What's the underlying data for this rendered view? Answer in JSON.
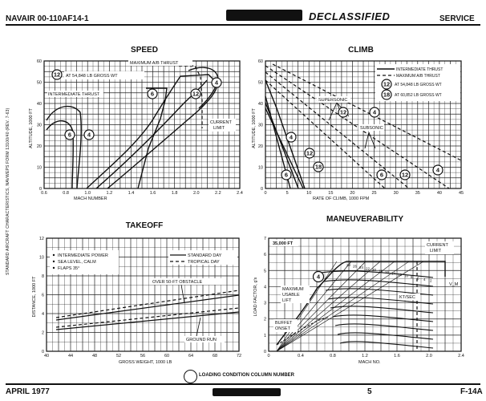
{
  "header": {
    "doc_id": "NAVAIR 00-110AF14-1",
    "classification": "DECLASSIFIED",
    "right_label": "SERVICE"
  },
  "side_text": "STANDARD AIRCRAFT CHARACTERISTICS, NAVWEPS FORM 13100/40 (REV. 7-63)",
  "charts": {
    "speed": {
      "title": "SPEED",
      "ylabel": "ALTITUDE, 1000 FT",
      "xlabel": "MACH NUMBER",
      "xticks": [
        "0.6",
        "0.8",
        "1.0",
        "1.2",
        "1.4",
        "1.6",
        "1.8",
        "2.0",
        "2.2",
        "2.4"
      ],
      "yticks": [
        "0",
        "10",
        "20",
        "30",
        "40",
        "50",
        "60"
      ],
      "labels": {
        "max_ab": "MAXIMUM A/B THRUST",
        "intermediate": "INTERMEDIATE THRUST",
        "gross_wt": "AT 54,848 LB GROSS WT",
        "current_limit_1": "CURRENT",
        "current_limit_2": "LIMIT"
      },
      "circles": {
        "c12": "12",
        "c6a": "6",
        "c4a": "4",
        "c6b": "6",
        "c12b": "12",
        "c4b": "4"
      }
    },
    "climb": {
      "title": "CLIMB",
      "ylabel": "ALTITUDE, 1000 FT",
      "xlabel": "RATE OF CLIMB, 1000 FPM",
      "xticks": [
        "0",
        "5",
        "10",
        "15",
        "20",
        "25",
        "30",
        "35",
        "40",
        "45"
      ],
      "yticks": [
        "0",
        "10",
        "20",
        "30",
        "40",
        "50",
        "60"
      ],
      "legend": {
        "intermediate": "INTERMEDIATE THRUST",
        "max_ab": "MAXIMUM A/B THRUST",
        "wt12": "AT 54,848 LB GROSS WT",
        "wt18": "AT 60,852 LB GROSS WT"
      },
      "labels": {
        "supersonic": "SUPERSONIC",
        "subsonic": "SUBSONIC"
      },
      "circles": {
        "l12": "12",
        "l18": "18",
        "s12": "12",
        "s4": "4",
        "a4": "4",
        "a12": "12",
        "a18": "18",
        "a6": "6",
        "b6": "6",
        "b12": "12",
        "b4": "4"
      }
    },
    "takeoff": {
      "title": "TAKEOFF",
      "ylabel": "DISTANCE, 1000 FT",
      "xlabel": "GROSS WEIGHT, 1000 LB",
      "xticks": [
        "40",
        "44",
        "48",
        "52",
        "56",
        "60",
        "64",
        "68",
        "72"
      ],
      "yticks": [
        "0",
        "2",
        "4",
        "6",
        "8",
        "10",
        "12"
      ],
      "notes": [
        "INTERMEDIATE POWER",
        "SEA LEVEL, CALM",
        "FLAPS 35°"
      ],
      "legend": {
        "standard": "STANDARD DAY",
        "tropical": "TROPICAL DAY"
      },
      "labels": {
        "obstacle": "OVER 50-FT OBSTACLE",
        "ground_run": "GROUND RUN"
      }
    },
    "maneuver": {
      "title": "MANEUVERABILITY",
      "ylabel": "LOAD FACTOR, g's",
      "xlabel": "MACH NO.",
      "xticks": [
        "0",
        "0.4",
        "0.8",
        "1.2",
        "1.6",
        "2.0",
        "2.4"
      ],
      "yticks": [
        "0",
        "1",
        "2",
        "3",
        "4",
        "5",
        "6",
        "7"
      ],
      "labels": {
        "altitude": "35,000 FT",
        "max_lift_1": "MAXIMUM",
        "max_lift_2": "USABLE",
        "max_lift_3": "LIFT",
        "current_limit_1": "CURRENT",
        "current_limit_2": "LIMIT",
        "buffet_1": "BUFFET",
        "buffet_2": "ONSET",
        "kt_sec": "KT/SEC",
        "vm": "V_M",
        "circle": "4",
        "turn_rates": [
          "28",
          "26",
          "24",
          "22",
          "20",
          "18",
          "16",
          "14",
          "12",
          "10",
          "8",
          "6",
          "4",
          "2"
        ]
      }
    }
  },
  "footer": {
    "legend_text": "LOADING CONDITION COLUMN NUMBER",
    "date": "APRIL 1977",
    "page": "5",
    "model": "F-14A"
  }
}
